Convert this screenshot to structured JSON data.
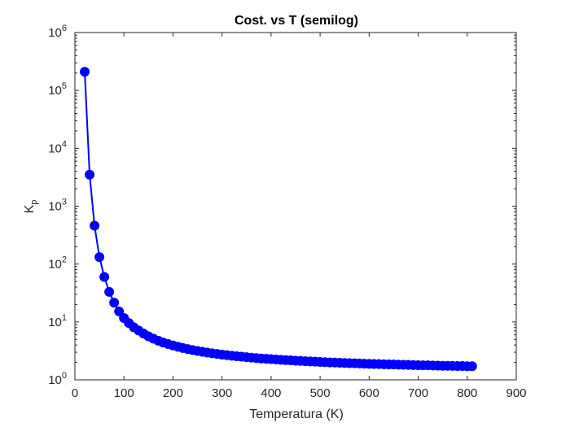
{
  "chart_data": {
    "type": "line",
    "title": "Cost. vs T (semilog)",
    "xlabel": "Temperatura (K)",
    "ylabel": "K",
    "ylabel_subscript": "p",
    "xlim": [
      0,
      900
    ],
    "ylim": [
      1,
      1000000
    ],
    "yscale": "log",
    "grid": false,
    "legend": "none",
    "x_ticks": [
      "0",
      "100",
      "200",
      "300",
      "400",
      "500",
      "600",
      "700",
      "800",
      "900"
    ],
    "y_ticks": [
      {
        "base": "10",
        "exp": "0"
      },
      {
        "base": "10",
        "exp": "1"
      },
      {
        "base": "10",
        "exp": "2"
      },
      {
        "base": "10",
        "exp": "3"
      },
      {
        "base": "10",
        "exp": "4"
      },
      {
        "base": "10",
        "exp": "5"
      },
      {
        "base": "10",
        "exp": "6"
      }
    ],
    "colors": {
      "series": "#0000ff",
      "axes": "#262626"
    },
    "series": [
      {
        "marker": "circle",
        "x": [
          20,
          30,
          40,
          50,
          60,
          70,
          80,
          90,
          100,
          110,
          120,
          130,
          140,
          150,
          160,
          170,
          180,
          190,
          200,
          210,
          220,
          230,
          240,
          250,
          260,
          270,
          280,
          290,
          300,
          310,
          320,
          330,
          340,
          350,
          360,
          370,
          380,
          390,
          400,
          410,
          420,
          430,
          440,
          450,
          460,
          470,
          480,
          490,
          500,
          510,
          520,
          530,
          540,
          550,
          560,
          570,
          580,
          590,
          600,
          610,
          620,
          630,
          640,
          650,
          660,
          670,
          680,
          690,
          700,
          710,
          720,
          730,
          740,
          750,
          760,
          770,
          780,
          790,
          800,
          810
        ],
        "y": [
          210000,
          3500,
          460,
          132,
          60,
          33,
          21.5,
          15.2,
          11.7,
          9.6,
          8.1,
          7.1,
          6.3,
          5.65,
          5.15,
          4.75,
          4.42,
          4.15,
          3.92,
          3.72,
          3.55,
          3.4,
          3.27,
          3.15,
          3.05,
          2.96,
          2.87,
          2.8,
          2.73,
          2.67,
          2.61,
          2.56,
          2.51,
          2.46,
          2.42,
          2.38,
          2.34,
          2.31,
          2.28,
          2.25,
          2.22,
          2.19,
          2.17,
          2.14,
          2.12,
          2.1,
          2.08,
          2.06,
          2.04,
          2.02,
          2.0,
          1.99,
          1.97,
          1.96,
          1.94,
          1.93,
          1.92,
          1.9,
          1.89,
          1.88,
          1.87,
          1.86,
          1.85,
          1.84,
          1.83,
          1.82,
          1.81,
          1.8,
          1.79,
          1.78,
          1.78,
          1.77,
          1.76,
          1.75,
          1.75,
          1.74,
          1.73,
          1.73,
          1.72,
          1.72
        ]
      }
    ]
  }
}
